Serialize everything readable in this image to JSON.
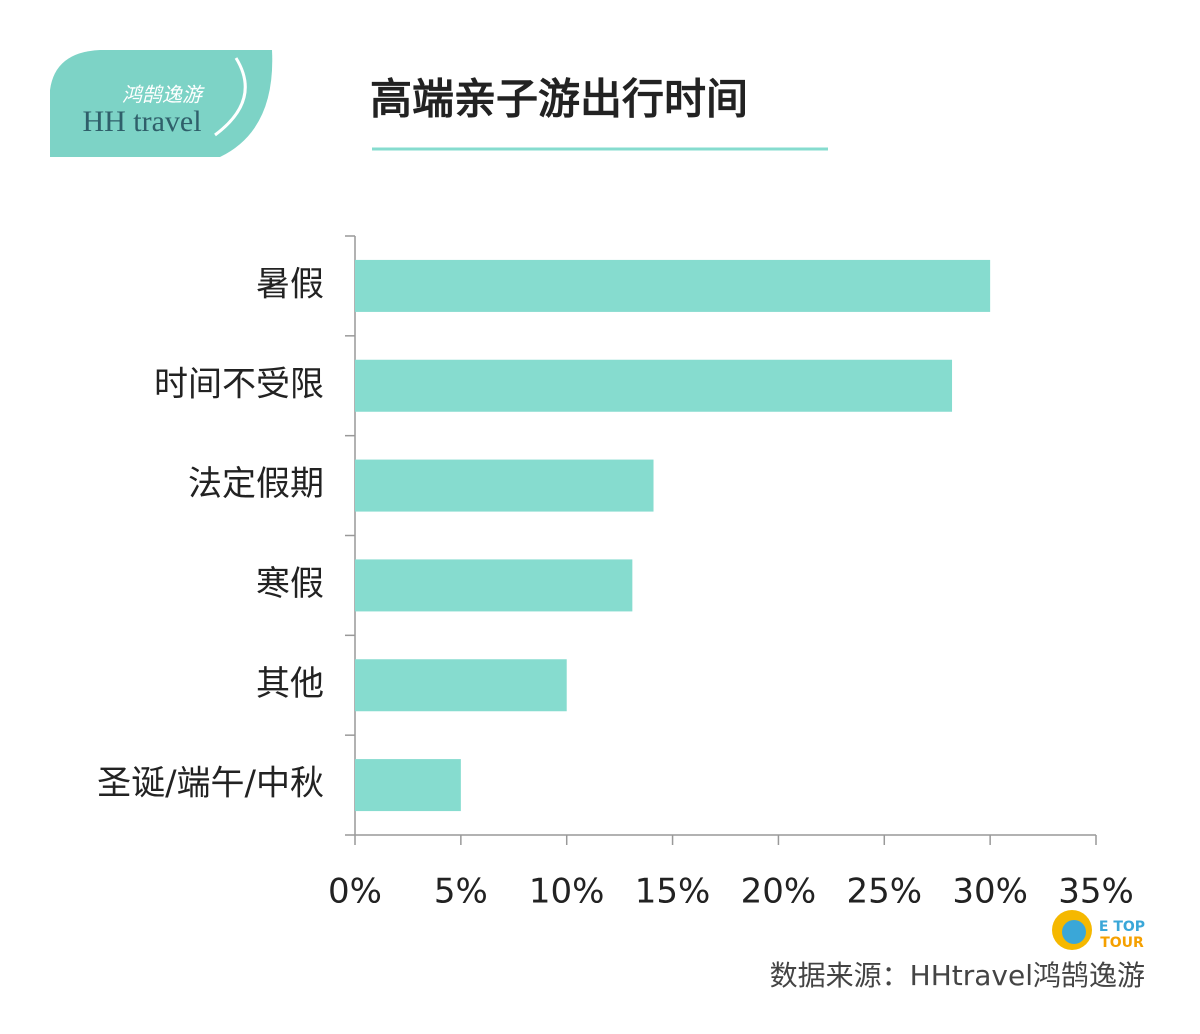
{
  "chart_data": {
    "type": "bar",
    "orientation": "horizontal",
    "title": "高端亲子游出行时间",
    "categories": [
      "暑假",
      "时间不受限",
      "法定假期",
      "寒假",
      "其他",
      "圣诞/端午/中秋"
    ],
    "values": [
      30,
      28.2,
      14.1,
      13.1,
      10,
      5
    ],
    "color": "#86dccf",
    "xlim": [
      0,
      35
    ],
    "xticks": [
      {
        "value": 0,
        "label": "0%"
      },
      {
        "value": 5,
        "label": "5%"
      },
      {
        "value": 10,
        "label": "10%"
      },
      {
        "value": 15,
        "label": "15%"
      },
      {
        "value": 20,
        "label": "20%"
      },
      {
        "value": 25,
        "label": "25%"
      },
      {
        "value": 30,
        "label": "30%"
      },
      {
        "value": 35,
        "label": "35%"
      }
    ],
    "source": "数据来源：HHtravel鸿鹄逸游"
  },
  "logo": {
    "chinese": "鸿鹄逸游",
    "english": "HH travel"
  },
  "badge": {
    "top": "E TOP",
    "bottom": "TOUR"
  }
}
